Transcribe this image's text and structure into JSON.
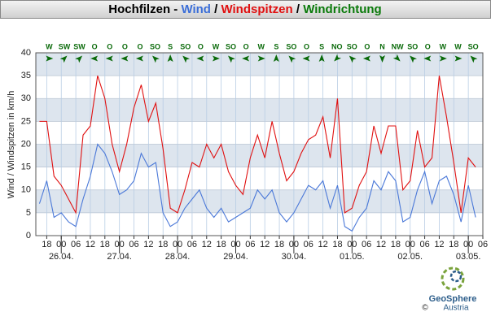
{
  "chart_data": {
    "type": "line",
    "title_parts": [
      {
        "text": "Hochfilzen - ",
        "color": "#000000"
      },
      {
        "text": "Wind",
        "color": "#3c6fd8"
      },
      {
        "text": " / ",
        "color": "#000000"
      },
      {
        "text": "Windspitzen",
        "color": "#e01010"
      },
      {
        "text": " / ",
        "color": "#000000"
      },
      {
        "text": "Windrichtung",
        "color": "#0a7a0a"
      }
    ],
    "y_label": "Wind / Windspitzen in km/h",
    "xlim": [
      -10.5,
      174
    ],
    "xticks": [
      {
        "value": -6,
        "label": "18"
      },
      {
        "value": 0,
        "label": "00"
      },
      {
        "value": 6,
        "label": "06"
      },
      {
        "value": 12,
        "label": "12"
      },
      {
        "value": 18,
        "label": "18"
      },
      {
        "value": 24,
        "label": "00"
      },
      {
        "value": 30,
        "label": "06"
      },
      {
        "value": 36,
        "label": "12"
      },
      {
        "value": 42,
        "label": "18"
      },
      {
        "value": 48,
        "label": "00"
      },
      {
        "value": 54,
        "label": "06"
      },
      {
        "value": 60,
        "label": "12"
      },
      {
        "value": 66,
        "label": "18"
      },
      {
        "value": 72,
        "label": "00"
      },
      {
        "value": 78,
        "label": "06"
      },
      {
        "value": 84,
        "label": "12"
      },
      {
        "value": 90,
        "label": "18"
      },
      {
        "value": 96,
        "label": "00"
      },
      {
        "value": 102,
        "label": "06"
      },
      {
        "value": 108,
        "label": "12"
      },
      {
        "value": 114,
        "label": "18"
      },
      {
        "value": 120,
        "label": "00"
      },
      {
        "value": 126,
        "label": "06"
      },
      {
        "value": 132,
        "label": "12"
      },
      {
        "value": 138,
        "label": "18"
      },
      {
        "value": 144,
        "label": "00"
      },
      {
        "value": 150,
        "label": "06"
      },
      {
        "value": 156,
        "label": "12"
      },
      {
        "value": 162,
        "label": "18"
      },
      {
        "value": 168,
        "label": "00"
      },
      {
        "value": 174,
        "label": "06"
      }
    ],
    "date_labels": [
      {
        "value": 0,
        "label": "26.04."
      },
      {
        "value": 24,
        "label": "27.04."
      },
      {
        "value": 48,
        "label": "28.04."
      },
      {
        "value": 72,
        "label": "29.04."
      },
      {
        "value": 96,
        "label": "30.04."
      },
      {
        "value": 120,
        "label": "01.05."
      },
      {
        "value": 144,
        "label": "02.05."
      },
      {
        "value": 168,
        "label": "03.05."
      }
    ],
    "ylim": [
      0,
      40
    ],
    "yticks": [
      0,
      5,
      10,
      15,
      20,
      25,
      30,
      35,
      40
    ],
    "grid": true,
    "x": [
      -9,
      -6,
      -3,
      0,
      3,
      6,
      9,
      12,
      15,
      18,
      21,
      24,
      27,
      30,
      33,
      36,
      39,
      42,
      45,
      48,
      51,
      54,
      57,
      60,
      63,
      66,
      69,
      72,
      75,
      78,
      81,
      84,
      87,
      90,
      93,
      96,
      99,
      102,
      105,
      108,
      111,
      114,
      117,
      120,
      123,
      126,
      129,
      132,
      135,
      138,
      141,
      144,
      147,
      150,
      153,
      156,
      159,
      162,
      165,
      168,
      171
    ],
    "series": [
      {
        "name": "Wind",
        "color": "#4a78d8",
        "values": [
          7,
          12,
          4,
          5,
          3,
          2,
          8,
          13,
          20,
          18,
          14,
          9,
          10,
          12,
          18,
          15,
          16,
          5,
          2,
          3,
          6,
          8,
          10,
          6,
          4,
          6,
          3,
          4,
          5,
          6,
          10,
          8,
          10,
          5,
          3,
          5,
          8,
          11,
          10,
          12,
          6,
          11,
          2,
          1,
          4,
          6,
          12,
          10,
          14,
          12,
          3,
          4,
          10,
          14,
          7,
          12,
          13,
          9,
          3,
          11,
          4
        ]
      },
      {
        "name": "Windspitzen",
        "color": "#e01010",
        "values": [
          25,
          25,
          13,
          11,
          8,
          5,
          22,
          24,
          35,
          30,
          20,
          14,
          20,
          28,
          33,
          25,
          29,
          19,
          6,
          5,
          10,
          16,
          15,
          20,
          17,
          20,
          14,
          11,
          9,
          17,
          22,
          17,
          25,
          18,
          12,
          14,
          18,
          21,
          22,
          26,
          17,
          30,
          5,
          6,
          11,
          14,
          24,
          18,
          24,
          24,
          10,
          12,
          23,
          15,
          17,
          35,
          26,
          16,
          5,
          17,
          15
        ]
      }
    ],
    "wind_direction": {
      "color": "#0a6a0a",
      "x": [
        -5,
        1.25,
        7.5,
        13.75,
        20,
        26.25,
        32.5,
        38.75,
        45,
        51.25,
        57.5,
        63.75,
        70,
        76.25,
        82.5,
        88.75,
        95,
        101.25,
        107.5,
        113.75,
        120,
        126.25,
        132.5,
        138.75,
        145,
        151.25,
        157.5,
        163.75,
        170
      ],
      "labels": [
        "W",
        "SW",
        "SW",
        "O",
        "O",
        "O",
        "O",
        "SO",
        "S",
        "SO",
        "O",
        "W",
        "SO",
        "O",
        "W",
        "S",
        "SO",
        "O",
        "S",
        "NO",
        "SO",
        "O",
        "N",
        "NW",
        "SO",
        "O",
        "W",
        "W",
        "SO"
      ],
      "degrees": [
        270,
        225,
        225,
        90,
        90,
        90,
        90,
        135,
        180,
        135,
        90,
        270,
        135,
        90,
        270,
        180,
        135,
        90,
        180,
        45,
        135,
        90,
        0,
        315,
        135,
        90,
        270,
        270,
        135
      ]
    },
    "logo": {
      "name": "GeoSphere",
      "sub": "Austria",
      "copyright": "©"
    }
  }
}
